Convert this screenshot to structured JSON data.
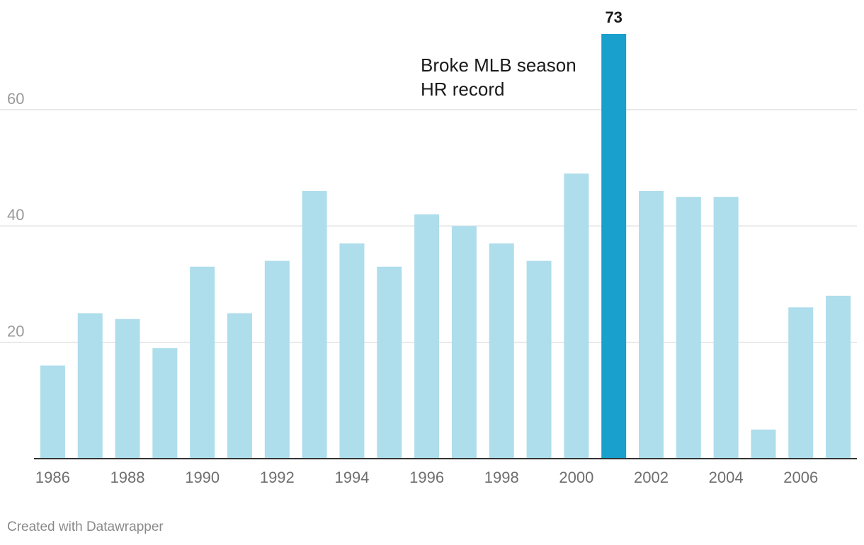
{
  "chart_data": {
    "type": "bar",
    "categories": [
      "1986",
      "1987",
      "1988",
      "1989",
      "1990",
      "1991",
      "1992",
      "1993",
      "1994",
      "1995",
      "1996",
      "1997",
      "1998",
      "1999",
      "2000",
      "2001",
      "2002",
      "2003",
      "2004",
      "2005",
      "2006",
      "2007"
    ],
    "values": [
      16,
      25,
      24,
      19,
      33,
      25,
      34,
      46,
      37,
      33,
      42,
      40,
      37,
      34,
      49,
      73,
      46,
      45,
      45,
      5,
      26,
      28
    ],
    "x_tick_labels": [
      "1986",
      "1988",
      "1990",
      "1992",
      "1994",
      "1996",
      "1998",
      "2000",
      "2002",
      "2004",
      "2006"
    ],
    "y_ticks": [
      20,
      40,
      60
    ],
    "ylim": [
      0,
      73
    ],
    "title": "",
    "xlabel": "",
    "ylabel": "",
    "grid": true,
    "highlight": {
      "category": "2001",
      "value_label": "73",
      "annotation_lines": [
        "Broke MLB season",
        "HR record"
      ]
    },
    "colors": {
      "bar": "#aeddec",
      "highlight_bar": "#19a0cd"
    }
  },
  "footer": {
    "credit": "Created with Datawrapper"
  }
}
